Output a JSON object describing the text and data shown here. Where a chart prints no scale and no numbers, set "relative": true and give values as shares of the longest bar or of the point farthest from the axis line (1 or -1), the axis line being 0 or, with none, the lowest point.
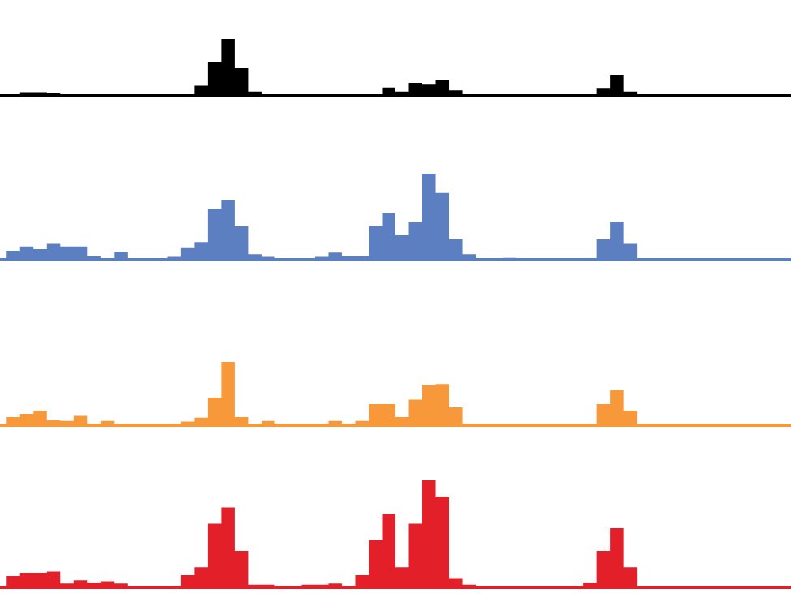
{
  "chart_data": [
    {
      "type": "area",
      "relative": true,
      "color": "#000000",
      "categories": [
        null,
        null,
        null,
        null,
        null,
        null,
        null,
        null,
        null,
        null,
        null,
        null,
        null,
        null,
        null,
        null,
        null,
        null,
        null,
        null,
        null,
        null,
        null,
        null,
        null,
        null,
        null,
        null,
        null,
        null,
        null,
        null,
        null,
        null,
        null,
        null,
        null,
        null,
        null,
        null,
        null,
        null,
        null,
        null,
        null,
        null,
        null,
        null,
        null,
        null,
        null,
        null,
        null,
        null,
        null,
        null,
        null,
        null,
        null,
        null
      ],
      "values": [
        0.02,
        0.04,
        0.09,
        0.09,
        0.07,
        0.03,
        0.02,
        0.02,
        0.03,
        0.02,
        0.02,
        0.02,
        0.02,
        0.03,
        0.05,
        0.2,
        0.6,
        1,
        0.5,
        0.1,
        0.03,
        0.02,
        0.02,
        0.03,
        0.03,
        0.03,
        0.03,
        0.04,
        0.03,
        0.17,
        0.1,
        0.25,
        0.22,
        0.3,
        0.12,
        0.02,
        0.02,
        0.02,
        0.03,
        0.02,
        0.02,
        0.02,
        0.02,
        0.02,
        0.04,
        0.15,
        0.38,
        0.1,
        0.02,
        0.02,
        0.02,
        0.03,
        0.03,
        0.02,
        0.02,
        0.02,
        0.02,
        0.02,
        0.03,
        0.02
      ]
    },
    {
      "type": "area",
      "relative": true,
      "color": "#5b7fc0",
      "categories": [
        null,
        null,
        null,
        null,
        null,
        null,
        null,
        null,
        null,
        null,
        null,
        null,
        null,
        null,
        null,
        null,
        null,
        null,
        null,
        null,
        null,
        null,
        null,
        null,
        null,
        null,
        null,
        null,
        null,
        null,
        null,
        null,
        null,
        null,
        null,
        null,
        null,
        null,
        null,
        null,
        null,
        null,
        null,
        null,
        null,
        null,
        null,
        null,
        null,
        null,
        null,
        null,
        null,
        null,
        null,
        null,
        null,
        null,
        null,
        null
      ],
      "values": [
        0.02,
        0.12,
        0.17,
        0.14,
        0.2,
        0.17,
        0.17,
        0.06,
        0.02,
        0.11,
        0.03,
        0.02,
        0.02,
        0.05,
        0.15,
        0.22,
        0.6,
        0.7,
        0.4,
        0.08,
        0.05,
        0.02,
        0.02,
        0.03,
        0.05,
        0.1,
        0.06,
        0.06,
        0.4,
        0.55,
        0.3,
        0.45,
        1,
        0.78,
        0.25,
        0.08,
        0.03,
        0.02,
        0.04,
        0.02,
        0.02,
        0.02,
        0.02,
        0.02,
        0.03,
        0.25,
        0.45,
        0.2,
        0.03,
        0.02,
        0.02,
        0.02,
        0.02,
        0.03,
        0.02,
        0.02,
        0.02,
        0.03,
        0.03,
        0.02
      ]
    },
    {
      "type": "area",
      "relative": true,
      "color": "#f7993a",
      "categories": [
        null,
        null,
        null,
        null,
        null,
        null,
        null,
        null,
        null,
        null,
        null,
        null,
        null,
        null,
        null,
        null,
        null,
        null,
        null,
        null,
        null,
        null,
        null,
        null,
        null,
        null,
        null,
        null,
        null,
        null,
        null,
        null,
        null,
        null,
        null,
        null,
        null,
        null,
        null,
        null,
        null,
        null,
        null,
        null,
        null,
        null,
        null,
        null,
        null,
        null,
        null,
        null,
        null,
        null,
        null,
        null,
        null,
        null,
        null,
        null
      ],
      "values": [
        0.02,
        0.15,
        0.2,
        0.25,
        0.1,
        0.09,
        0.17,
        0.03,
        0.09,
        0.02,
        0.01,
        0.01,
        0.01,
        0.04,
        0.08,
        0.14,
        0.45,
        1,
        0.15,
        0.04,
        0.09,
        0.02,
        0.01,
        0.04,
        0.04,
        0.09,
        0.05,
        0.09,
        0.35,
        0.35,
        0.15,
        0.42,
        0.64,
        0.66,
        0.3,
        0.04,
        0.02,
        0.01,
        0.03,
        0.03,
        0.01,
        0.01,
        0.01,
        0.02,
        0.05,
        0.35,
        0.57,
        0.25,
        0.04,
        0.03,
        0.03,
        0.03,
        0.03,
        0.02,
        0.01,
        0.01,
        0.01,
        0.02,
        0.03,
        0.01
      ]
    },
    {
      "type": "area",
      "relative": true,
      "color": "#e3202a",
      "categories": [
        null,
        null,
        null,
        null,
        null,
        null,
        null,
        null,
        null,
        null,
        null,
        null,
        null,
        null,
        null,
        null,
        null,
        null,
        null,
        null,
        null,
        null,
        null,
        null,
        null,
        null,
        null,
        null,
        null,
        null,
        null,
        null,
        null,
        null,
        null,
        null,
        null,
        null,
        null,
        null,
        null,
        null,
        null,
        null,
        null,
        null,
        null,
        null,
        null,
        null,
        null,
        null,
        null,
        null,
        null,
        null,
        null,
        null,
        null,
        null
      ],
      "values": [
        0.03,
        0.12,
        0.15,
        0.15,
        0.16,
        0.05,
        0.08,
        0.06,
        0.07,
        0.05,
        0.01,
        0.01,
        0.01,
        0.02,
        0.13,
        0.2,
        0.6,
        0.75,
        0.35,
        0.04,
        0.04,
        0.02,
        0.01,
        0.04,
        0.04,
        0.05,
        0.02,
        0.13,
        0.45,
        0.69,
        0.2,
        0.6,
        1,
        0.85,
        0.1,
        0.04,
        0.01,
        0.01,
        0.02,
        0.01,
        0.01,
        0.02,
        0.02,
        0.02,
        0.06,
        0.35,
        0.56,
        0.2,
        0.02,
        0.02,
        0.02,
        0.02,
        0.02,
        0.01,
        0.01,
        0.01,
        0.01,
        0.02,
        0.02,
        0.01
      ]
    }
  ]
}
